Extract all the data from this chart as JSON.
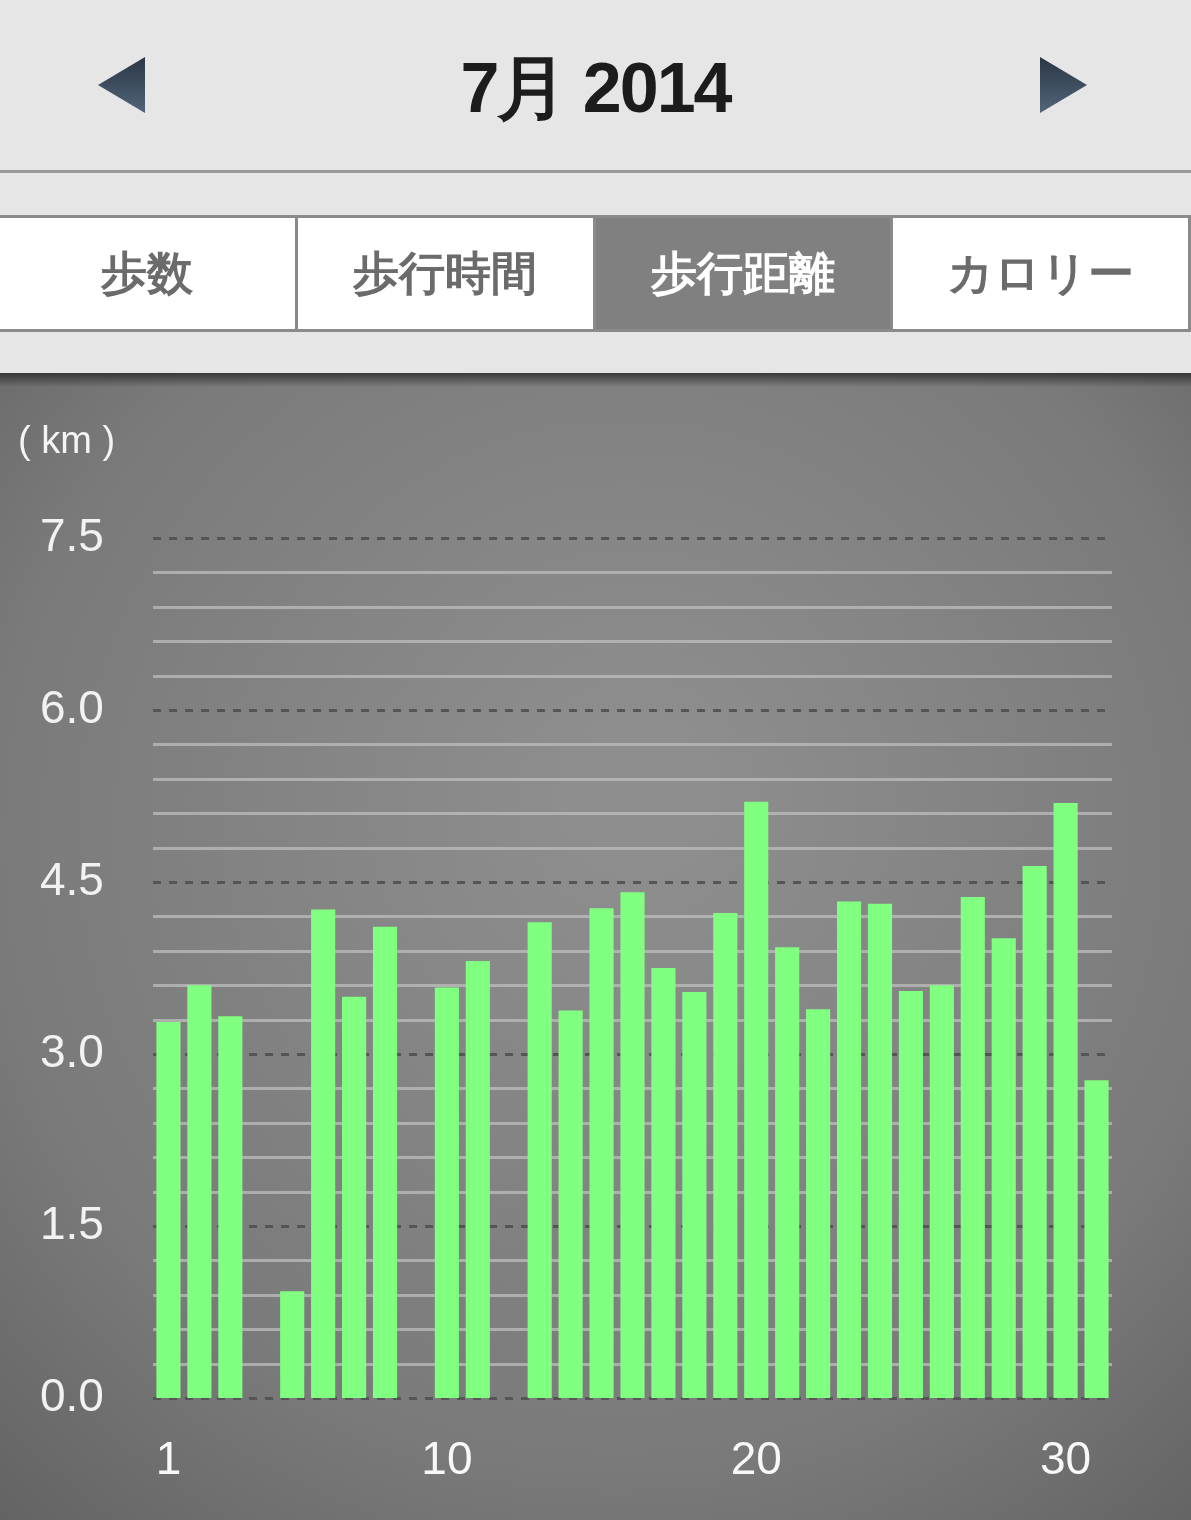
{
  "chart_data": {
    "type": "bar",
    "title": "7月 2014",
    "ylabel": "( km )",
    "annotations": [
      "歩数",
      "歩行時間",
      "歩行距離",
      "カロリー"
    ],
    "categories": [
      "1",
      null,
      null,
      null,
      null,
      null,
      null,
      null,
      null,
      "10",
      null,
      null,
      null,
      null,
      null,
      null,
      null,
      null,
      null,
      "20",
      null,
      null,
      null,
      null,
      null,
      null,
      null,
      null,
      null,
      "30",
      null
    ],
    "values": [
      3.28,
      3.6,
      3.33,
      null,
      0.93,
      4.26,
      3.5,
      4.11,
      null,
      3.58,
      3.81,
      null,
      4.15,
      3.38,
      4.27,
      4.41,
      3.75,
      3.54,
      4.23,
      5.2,
      3.93,
      3.39,
      4.33,
      4.31,
      3.55,
      3.6,
      4.37,
      4.01,
      4.64,
      5.19,
      2.77
    ],
    "color": "#80ff80",
    "ylim": [
      0,
      7.5
    ],
    "yticks": [
      {
        "value": 0,
        "label": "0.0"
      },
      {
        "value": 0.3,
        "label": null
      },
      {
        "value": 0.6,
        "label": null
      },
      {
        "value": 0.9,
        "label": null
      },
      {
        "value": 1.2,
        "label": null
      },
      1.5,
      {
        "value": 1.8,
        "label": null
      },
      {
        "value": 2.1,
        "label": null
      },
      {
        "value": 2.4,
        "label": null
      },
      {
        "value": 2.7,
        "label": null
      },
      {
        "value": 3,
        "label": "3.0"
      },
      {
        "value": 3.3,
        "label": null
      },
      {
        "value": 3.6,
        "label": null
      },
      {
        "value": 3.9,
        "label": null
      },
      {
        "value": 4.2,
        "label": null
      },
      4.5,
      {
        "value": 4.8,
        "label": null
      },
      {
        "value": 5.1,
        "label": null
      },
      {
        "value": 5.4,
        "label": null
      },
      {
        "value": 5.7,
        "label": null
      },
      {
        "value": 6,
        "label": "6.0"
      },
      {
        "value": 6.3,
        "label": null
      },
      {
        "value": 6.6,
        "label": null
      },
      {
        "value": 6.9,
        "label": null
      },
      {
        "value": 7.2,
        "label": null
      },
      7.5
    ],
    "grid": "y"
  }
}
